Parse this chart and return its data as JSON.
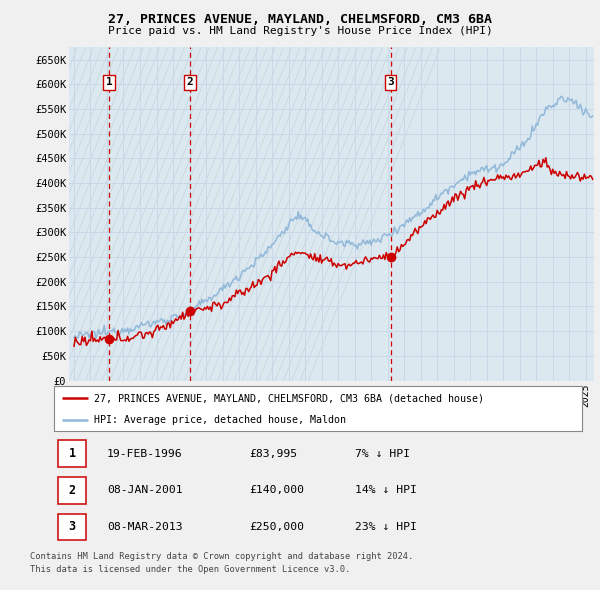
{
  "title1": "27, PRINCES AVENUE, MAYLAND, CHELMSFORD, CM3 6BA",
  "title2": "Price paid vs. HM Land Registry's House Price Index (HPI)",
  "ylabel_ticks": [
    "£0",
    "£50K",
    "£100K",
    "£150K",
    "£200K",
    "£250K",
    "£300K",
    "£350K",
    "£400K",
    "£450K",
    "£500K",
    "£550K",
    "£600K",
    "£650K"
  ],
  "ytick_values": [
    0,
    50000,
    100000,
    150000,
    200000,
    250000,
    300000,
    350000,
    400000,
    450000,
    500000,
    550000,
    600000,
    650000
  ],
  "xmin": 1993.7,
  "xmax": 2025.5,
  "ymin": 0,
  "ymax": 675000,
  "purchases": [
    {
      "date": 1996.12,
      "price": 83995,
      "label": "1"
    },
    {
      "date": 2001.02,
      "price": 140000,
      "label": "2"
    },
    {
      "date": 2013.18,
      "price": 250000,
      "label": "3"
    }
  ],
  "legend_line1": "27, PRINCES AVENUE, MAYLAND, CHELMSFORD, CM3 6BA (detached house)",
  "legend_line2": "HPI: Average price, detached house, Maldon",
  "table": [
    {
      "num": "1",
      "date": "19-FEB-1996",
      "price": "£83,995",
      "hpi": "7% ↓ HPI"
    },
    {
      "num": "2",
      "date": "08-JAN-2001",
      "price": "£140,000",
      "hpi": "14% ↓ HPI"
    },
    {
      "num": "3",
      "date": "08-MAR-2013",
      "price": "£250,000",
      "hpi": "23% ↓ HPI"
    }
  ],
  "footer1": "Contains HM Land Registry data © Crown copyright and database right 2024.",
  "footer2": "This data is licensed under the Open Government Licence v3.0.",
  "hpi_color": "#92b8d9",
  "price_color": "#cc0000",
  "grid_color": "#c8d8e8",
  "vgrid_color": "#c8d8e8",
  "bg_color": "#f0f0f0",
  "plot_bg": "#dce8f0",
  "hatch_color": "#c8d4dc"
}
